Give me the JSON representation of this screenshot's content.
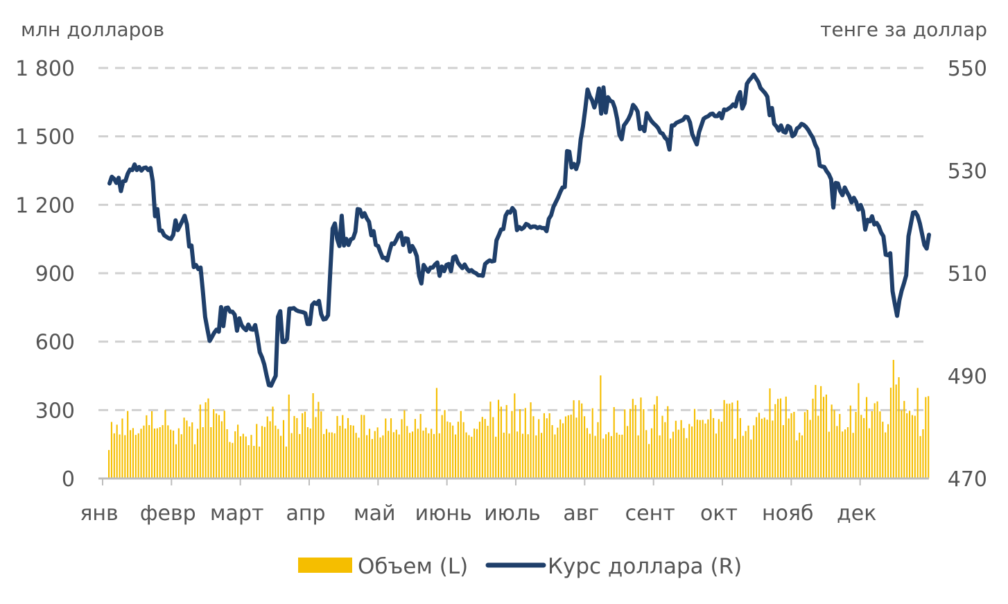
{
  "colors": {
    "volume_bar": "#F5BE00",
    "rate_line": "#1F3F6A",
    "grid": "#D0D0D0",
    "axis": "#BDBDBD",
    "text": "#555555"
  },
  "chart_data": {
    "type": "bar+line",
    "left_axis": {
      "unit_label": "млн долларов",
      "ticks": [
        0,
        300,
        600,
        900,
        1200,
        1500,
        1800
      ],
      "tick_labels": [
        "0",
        "300",
        "600",
        "900",
        "1 200",
        "1 500",
        "1 800"
      ],
      "range": [
        0,
        1800
      ]
    },
    "right_axis": {
      "unit_label": "тенге за доллар",
      "ticks": [
        470,
        490,
        510,
        530,
        550
      ],
      "tick_labels": [
        "470",
        "490",
        "510",
        "530",
        "550"
      ],
      "range": [
        470,
        550
      ]
    },
    "x_axis": {
      "months": [
        "янв",
        "февр",
        "март",
        "апр",
        "май",
        "июнь",
        "июль",
        "авг",
        "сент",
        "окт",
        "нояб",
        "дек"
      ]
    },
    "grid": "horizontal-dashed",
    "legend_position": "bottom",
    "series": [
      {
        "name": "Объем (L)",
        "type": "bar",
        "axis": "left",
        "values": [
          125,
          248,
          198,
          236,
          193,
          263,
          190,
          296,
          212,
          221,
          191,
          198,
          218,
          232,
          277,
          234,
          295,
          219,
          220,
          225,
          234,
          300,
          233,
          214,
          210,
          150,
          220,
          194,
          267,
          254,
          228,
          246,
          150,
          218,
          324,
          225,
          334,
          351,
          225,
          304,
          285,
          278,
          251,
          297,
          216,
          160,
          156,
          207,
          236,
          185,
          196,
          184,
          146,
          191,
          143,
          239,
          140,
          230,
          226,
          272,
          251,
          315,
          232,
          217,
          187,
          256,
          140,
          368,
          199,
          274,
          265,
          195,
          286,
          293,
          225,
          219,
          374,
          269,
          336,
          294,
          195,
          217,
          202,
          202,
          198,
          274,
          231,
          278,
          219,
          265,
          234,
          232,
          200,
          179,
          279,
          278,
          190,
          218,
          173,
          208,
          224,
          180,
          189,
          263,
          209,
          264,
          203,
          214,
          193,
          260,
          299,
          230,
          200,
          206,
          261,
          218,
          283,
          210,
          223,
          198,
          218,
          195,
          397,
          198,
          278,
          300,
          250,
          246,
          232,
          193,
          249,
          296,
          247,
          202,
          190,
          183,
          219,
          217,
          249,
          270,
          261,
          231,
          337,
          269,
          183,
          345,
          315,
          201,
          322,
          197,
          296,
          373,
          206,
          304,
          196,
          309,
          194,
          334,
          273,
          189,
          260,
          200,
          286,
          264,
          286,
          234,
          193,
          223,
          259,
          242,
          272,
          277,
          280,
          343,
          267,
          343,
          329,
          273,
          221,
          196,
          308,
          187,
          247,
          452,
          175,
          194,
          203,
          186,
          313,
          201,
          192,
          192,
          303,
          230,
          305,
          349,
          322,
          189,
          355,
          304,
          212,
          151,
          220,
          324,
          361,
          189,
          275,
          247,
          317,
          175,
          205,
          253,
          214,
          256,
          221,
          177,
          239,
          228,
          305,
          258,
          256,
          257,
          241,
          259,
          304,
          265,
          197,
          260,
          249,
          344,
          328,
          328,
          333,
          174,
          342,
          265,
          187,
          208,
          232,
          171,
          233,
          269,
          288,
          262,
          267,
          258,
          395,
          254,
          326,
          349,
          351,
          234,
          359,
          263,
          286,
          292,
          167,
          201,
          189,
          291,
          301,
          257,
          350,
          410,
          275,
          405,
          358,
          368,
          205,
          324,
          300,
          230,
          283,
          206,
          215,
          225,
          320,
          200,
          292,
          418,
          279,
          265,
          357,
          220,
          295,
          330,
          338,
          294,
          249,
          202,
          238,
          398,
          520,
          412,
          444,
          299,
          340,
          286,
          297,
          278,
          275,
          397,
          186,
          216,
          357,
          361
        ]
      },
      {
        "name": "Курс доллара (R)",
        "type": "line",
        "axis": "right",
        "values": [
          527.5,
          528.8,
          528.4,
          527.6,
          528.6,
          526.0,
          527.9,
          528.0,
          529.4,
          530.2,
          530.1,
          531.2,
          530.1,
          530.7,
          530.0,
          530.5,
          530.6,
          530.1,
          530.5,
          527.9,
          521.1,
          522.5,
          518.3,
          518.3,
          517.4,
          517.1,
          516.8,
          516.7,
          517.5,
          520.3,
          518.4,
          519.3,
          520.2,
          521.2,
          519.5,
          515.2,
          515.4,
          511.2,
          511.6,
          510.8,
          511.1,
          506.5,
          501.5,
          499.1,
          496.8,
          497.6,
          498.4,
          499.0,
          498.6,
          503.4,
          499.7,
          503.2,
          503.3,
          502.5,
          502.5,
          501.9,
          498.8,
          501.2,
          499.9,
          499.3,
          498.9,
          500.0,
          499.1,
          499.0,
          499.9,
          497.5,
          494.6,
          493.6,
          492.2,
          490.1,
          488.2,
          488.1,
          489.1,
          490.0,
          501.5,
          502.6,
          496.6,
          496.6,
          497.2,
          503.1,
          503.1,
          503.2,
          502.8,
          502.6,
          502.5,
          502.4,
          502.2,
          500.1,
          500.1,
          503.8,
          504.3,
          504.0,
          504.6,
          502.0,
          501.0,
          501.1,
          501.8,
          510.5,
          518.7,
          519.7,
          516.7,
          515.3,
          521.2,
          515.4,
          516.7,
          515.5,
          516.6,
          516.8,
          518.1,
          522.5,
          522.4,
          521.0,
          521.7,
          520.7,
          520.0,
          517.4,
          518.2,
          515.5,
          515.3,
          514.1,
          513.0,
          513.0,
          512.5,
          514.3,
          515.8,
          515.7,
          516.5,
          517.5,
          517.9,
          515.5,
          516.8,
          516.7,
          514.2,
          515.3,
          514.5,
          513.3,
          509.5,
          508.0,
          511.6,
          510.9,
          510.3,
          511.1,
          511.1,
          511.7,
          512.1,
          509.5,
          511.3,
          510.4,
          511.6,
          511.8,
          510.4,
          513.1,
          513.3,
          512.1,
          511.5,
          511.0,
          511.7,
          510.9,
          510.4,
          510.6,
          510.2,
          510.0,
          509.6,
          509.6,
          509.5,
          511.8,
          512.2,
          512.5,
          512.3,
          512.4,
          516.4,
          517.4,
          518.5,
          518.6,
          521.2,
          522.0,
          521.8,
          522.7,
          522.1,
          518.4,
          519.0,
          518.6,
          518.9,
          519.6,
          519.4,
          518.9,
          519.1,
          519.1,
          518.8,
          519.0,
          518.8,
          518.8,
          518.2,
          520.6,
          521.3,
          522.9,
          523.8,
          524.7,
          525.8,
          526.7,
          526.8,
          533.8,
          533.7,
          530.6,
          531.3,
          530.3,
          531.7,
          536.1,
          538.6,
          542.0,
          545.8,
          544.5,
          543.7,
          542.3,
          543.7,
          546.0,
          541.1,
          546.2,
          541.3,
          544.3,
          543.6,
          543.4,
          542.2,
          540.1,
          537.0,
          536.1,
          538.8,
          539.4,
          540.1,
          541.1,
          542.8,
          542.3,
          541.5,
          538.1,
          538.5,
          537.7,
          541.2,
          540.4,
          539.7,
          539.2,
          538.8,
          538.3,
          537.4,
          537.2,
          536.4,
          536.0,
          534.1,
          538.8,
          538.8,
          539.3,
          539.5,
          539.7,
          539.9,
          540.5,
          540.4,
          539.4,
          537.1,
          536.1,
          535.1,
          537.5,
          538.8,
          540.1,
          540.4,
          540.6,
          541.0,
          541.1,
          540.6,
          540.6,
          541.2,
          540.2,
          541.9,
          541.8,
          542.1,
          542.4,
          542.9,
          542.5,
          544.3,
          545.3,
          542.1,
          543.1,
          546.9,
          547.6,
          548.1,
          548.7,
          548.0,
          547.3,
          546.1,
          545.6,
          545.1,
          544.4,
          540.8,
          542.2,
          539.1,
          538.6,
          537.8,
          538.8,
          537.6,
          537.4,
          538.7,
          538.4,
          536.7,
          537.0,
          538.2,
          538.5,
          539.1,
          538.9,
          538.5,
          537.9,
          537.1,
          536.4,
          535.1,
          534.2,
          531.0,
          530.8,
          530.7,
          529.9,
          529.3,
          528.3,
          522.8,
          527.6,
          527.5,
          526.0,
          525.2,
          526.7,
          525.8,
          525.0,
          523.8,
          524.7,
          523.9,
          522.4,
          523.3,
          522.1,
          518.5,
          520.4,
          520.1,
          521.1,
          519.5,
          519.8,
          519.1,
          517.9,
          517.2,
          513.6,
          513.5,
          513.9,
          506.5,
          504.0,
          501.7,
          504.7,
          506.6,
          508.0,
          509.6,
          517.2,
          519.5,
          521.8,
          521.9,
          521.2,
          519.7,
          517.6,
          515.5,
          514.8,
          517.5
        ]
      }
    ]
  }
}
